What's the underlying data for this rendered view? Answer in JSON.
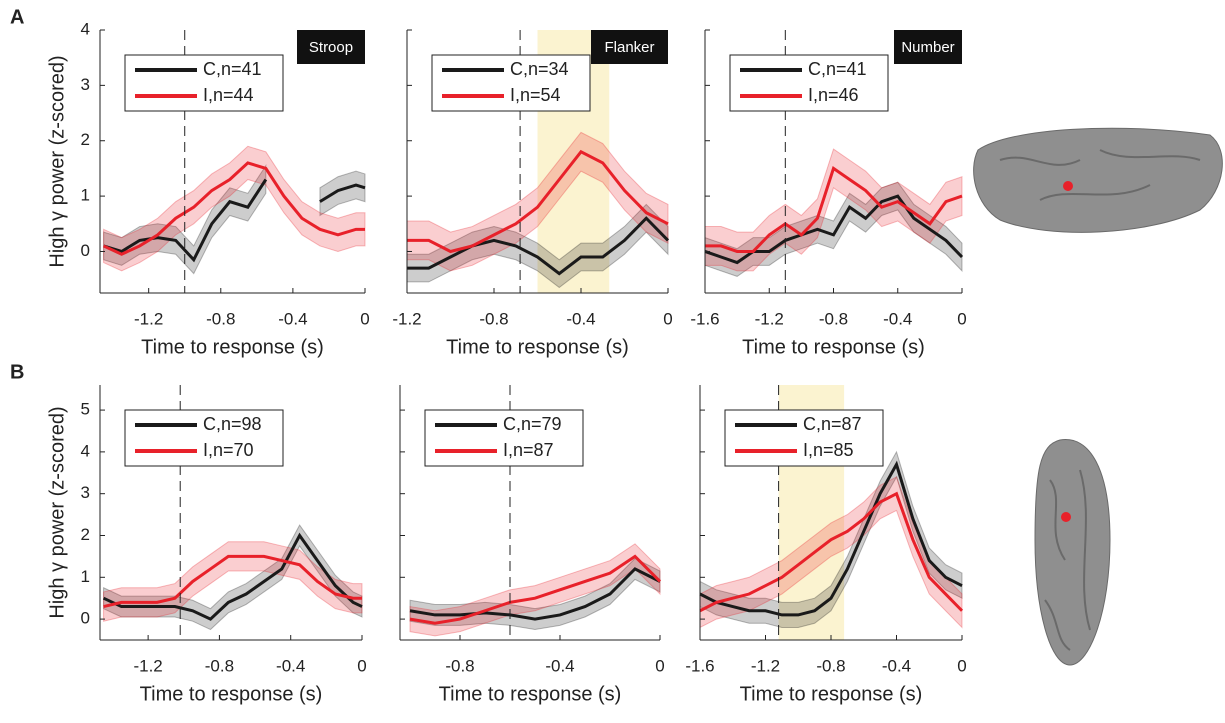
{
  "chart_data": [
    {
      "type": "line",
      "panel_label": "A",
      "task_label": "Stroop",
      "ylabel": "High γ power (z-scored)",
      "xlabel": "Time to response (s)",
      "x": [
        -1.45,
        -1.35,
        -1.25,
        -1.15,
        -1.05,
        -0.95,
        -0.85,
        -0.75,
        -0.65,
        -0.55,
        -0.45,
        -0.35,
        -0.25,
        -0.15,
        -0.05,
        0
      ],
      "series": [
        {
          "name": "C,n=41",
          "color": "#1a1a1a",
          "error": 0.25,
          "values": [
            0.1,
            0.0,
            0.2,
            0.25,
            0.2,
            -0.15,
            0.5,
            0.9,
            0.8,
            1.3,
            null,
            null,
            0.9,
            1.1,
            1.2,
            1.15
          ]
        },
        {
          "name": "I,n=44",
          "color": "#e8212a",
          "error": 0.3,
          "values": [
            0.1,
            -0.05,
            0.1,
            0.3,
            0.6,
            0.8,
            1.1,
            1.3,
            1.6,
            1.5,
            1.0,
            0.6,
            0.4,
            0.3,
            0.4,
            0.4
          ]
        }
      ],
      "vline": -1.0,
      "xlim": [
        -1.47,
        0
      ],
      "ylim": [
        -0.75,
        4
      ],
      "xticks": [
        -1.2,
        -0.8,
        -0.4,
        0
      ],
      "yticks": [
        0,
        1,
        2,
        3,
        4
      ]
    },
    {
      "type": "line",
      "task_label": "Flanker",
      "xlabel": "Time to response (s)",
      "x": [
        -1.2,
        -1.1,
        -1.0,
        -0.9,
        -0.8,
        -0.7,
        -0.6,
        -0.5,
        -0.4,
        -0.3,
        -0.2,
        -0.1,
        0
      ],
      "series": [
        {
          "name": "C,n=34",
          "color": "#1a1a1a",
          "error": 0.25,
          "values": [
            -0.3,
            -0.3,
            -0.1,
            0.1,
            0.2,
            0.1,
            -0.1,
            -0.4,
            -0.1,
            -0.1,
            0.2,
            0.6,
            0.2
          ]
        },
        {
          "name": "I,n=54",
          "color": "#e8212a",
          "error": 0.35,
          "values": [
            0.2,
            0.2,
            0.0,
            0.1,
            0.3,
            0.5,
            0.8,
            1.3,
            1.8,
            1.6,
            1.1,
            0.7,
            0.5
          ]
        }
      ],
      "vline": -0.68,
      "highlight": [
        -0.6,
        -0.27
      ],
      "xlim": [
        -1.2,
        0
      ],
      "ylim": [
        -0.75,
        4
      ],
      "xticks": [
        -1.2,
        -0.8,
        -0.4,
        0
      ],
      "yticks": [
        0,
        1,
        2,
        3,
        4
      ]
    },
    {
      "type": "line",
      "task_label": "Number",
      "xlabel": "Time to response (s)",
      "x": [
        -1.6,
        -1.5,
        -1.4,
        -1.3,
        -1.2,
        -1.1,
        -1.0,
        -0.9,
        -0.8,
        -0.7,
        -0.6,
        -0.5,
        -0.4,
        -0.3,
        -0.2,
        -0.1,
        0
      ],
      "series": [
        {
          "name": "C,n=41",
          "color": "#1a1a1a",
          "error": 0.25,
          "values": [
            0.0,
            -0.1,
            -0.2,
            0.0,
            0.0,
            0.2,
            0.3,
            0.4,
            0.3,
            0.8,
            0.6,
            0.9,
            1.0,
            0.6,
            0.4,
            0.2,
            -0.1
          ]
        },
        {
          "name": "I,n=46",
          "color": "#e8212a",
          "error": 0.35,
          "values": [
            0.1,
            0.1,
            0.0,
            0.0,
            0.3,
            0.5,
            0.3,
            0.6,
            1.5,
            1.3,
            1.1,
            0.8,
            0.9,
            0.7,
            0.5,
            0.9,
            1.0
          ]
        }
      ],
      "vline": -1.1,
      "xlim": [
        -1.6,
        0
      ],
      "ylim": [
        -0.75,
        4
      ],
      "xticks": [
        -1.6,
        -1.2,
        -0.8,
        -0.4,
        0
      ],
      "yticks": [
        0,
        1,
        2,
        3,
        4
      ]
    },
    {
      "type": "line",
      "panel_label": "B",
      "ylabel": "High γ power (z-scored)",
      "xlabel": "Time to response (s)",
      "x": [
        -1.45,
        -1.35,
        -1.25,
        -1.15,
        -1.05,
        -0.95,
        -0.85,
        -0.75,
        -0.65,
        -0.55,
        -0.45,
        -0.35,
        -0.25,
        -0.15,
        -0.05,
        0
      ],
      "series": [
        {
          "name": "C,n=98",
          "color": "#1a1a1a",
          "error": 0.25,
          "values": [
            0.5,
            0.3,
            0.3,
            0.3,
            0.3,
            0.2,
            0.0,
            0.4,
            0.6,
            0.9,
            1.2,
            2.0,
            1.4,
            0.8,
            0.4,
            0.3
          ]
        },
        {
          "name": "I,n=70",
          "color": "#e8212a",
          "error": 0.35,
          "values": [
            0.3,
            0.4,
            0.4,
            0.4,
            0.5,
            0.9,
            1.2,
            1.5,
            1.5,
            1.5,
            1.4,
            1.3,
            0.9,
            0.6,
            0.5,
            0.5
          ]
        }
      ],
      "vline": -1.02,
      "xlim": [
        -1.47,
        0
      ],
      "ylim": [
        -0.5,
        5.6
      ],
      "xticks": [
        -1.2,
        -0.8,
        -0.4,
        0
      ],
      "yticks": [
        0,
        1,
        2,
        3,
        4,
        5
      ]
    },
    {
      "type": "line",
      "xlabel": "Time to response (s)",
      "x": [
        -1.0,
        -0.9,
        -0.8,
        -0.7,
        -0.6,
        -0.5,
        -0.4,
        -0.3,
        -0.2,
        -0.1,
        0
      ],
      "series": [
        {
          "name": "C,n=79",
          "color": "#1a1a1a",
          "error": 0.25,
          "values": [
            0.2,
            0.1,
            0.1,
            0.15,
            0.1,
            0.0,
            0.1,
            0.3,
            0.6,
            1.2,
            0.9
          ]
        },
        {
          "name": "I,n=87",
          "color": "#e8212a",
          "error": 0.3,
          "values": [
            0.0,
            -0.1,
            0.0,
            0.2,
            0.4,
            0.5,
            0.7,
            0.9,
            1.1,
            1.5,
            0.9
          ]
        }
      ],
      "vline": -0.6,
      "xlim": [
        -1.04,
        0
      ],
      "ylim": [
        -0.5,
        5.6
      ],
      "xticks": [
        -0.8,
        -0.4,
        0
      ],
      "yticks": [
        0,
        1,
        2,
        3,
        4,
        5
      ]
    },
    {
      "type": "line",
      "xlabel": "Time to response (s)",
      "x": [
        -1.6,
        -1.5,
        -1.4,
        -1.3,
        -1.2,
        -1.1,
        -1.0,
        -0.9,
        -0.8,
        -0.7,
        -0.6,
        -0.5,
        -0.4,
        -0.3,
        -0.2,
        -0.1,
        0
      ],
      "series": [
        {
          "name": "C,n=87",
          "color": "#1a1a1a",
          "error": 0.3,
          "values": [
            0.6,
            0.4,
            0.3,
            0.2,
            0.2,
            0.1,
            0.1,
            0.2,
            0.5,
            1.2,
            2.1,
            3.0,
            3.7,
            2.4,
            1.4,
            1.0,
            0.8
          ]
        },
        {
          "name": "I,n=85",
          "color": "#e8212a",
          "error": 0.4,
          "values": [
            0.2,
            0.4,
            0.5,
            0.6,
            0.8,
            1.0,
            1.3,
            1.6,
            1.9,
            2.1,
            2.4,
            2.8,
            3.0,
            1.9,
            1.0,
            0.6,
            0.2
          ]
        }
      ],
      "vline": -1.12,
      "highlight": [
        -1.12,
        -0.72
      ],
      "xlim": [
        -1.6,
        0
      ],
      "ylim": [
        -0.5,
        5.6
      ],
      "xticks": [
        -1.6,
        -1.2,
        -0.8,
        -0.4,
        0
      ],
      "yticks": [
        0,
        1,
        2,
        3,
        4,
        5
      ]
    }
  ]
}
